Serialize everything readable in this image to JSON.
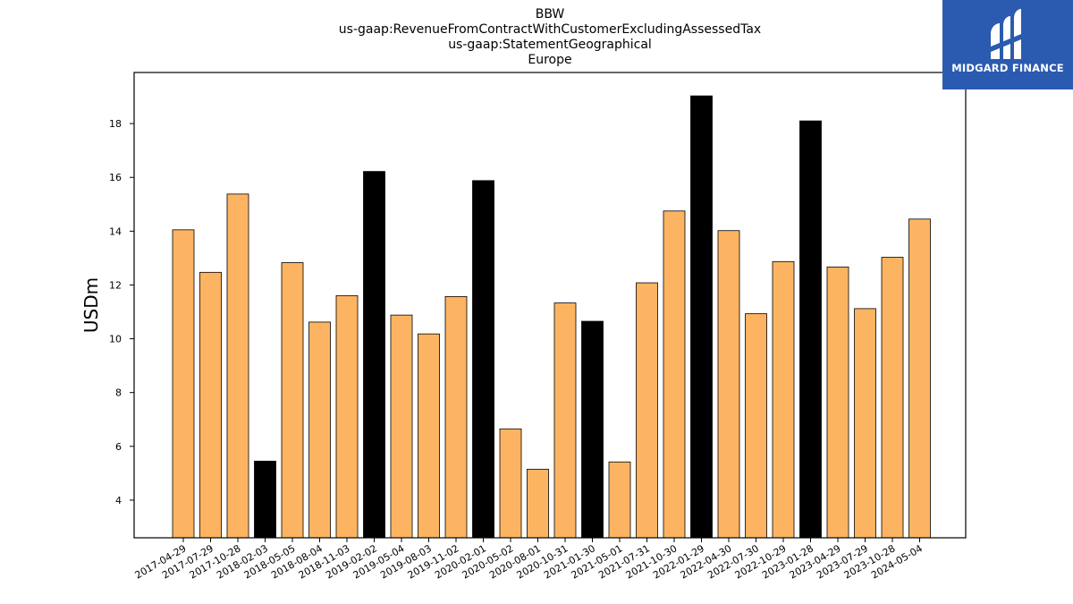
{
  "chart_data": {
    "type": "bar",
    "title_lines": [
      "BBW",
      "us-gaap:RevenueFromContractWithCustomerExcludingAssessedTax",
      "us-gaap:StatementGeographical",
      "Europe"
    ],
    "ylabel": "USDm",
    "ylim": [
      2.6,
      19.9
    ],
    "yticks": [
      4,
      6,
      8,
      10,
      12,
      14,
      16,
      18
    ],
    "categories": [
      "2017-04-29",
      "2017-07-29",
      "2017-10-28",
      "2018-02-03",
      "2018-05-05",
      "2018-08-04",
      "2018-11-03",
      "2019-02-02",
      "2019-05-04",
      "2019-08-03",
      "2019-11-02",
      "2020-02-01",
      "2020-05-02",
      "2020-08-01",
      "2020-10-31",
      "2021-01-30",
      "2021-05-01",
      "2021-07-31",
      "2021-10-30",
      "2022-01-29",
      "2022-04-30",
      "2022-07-30",
      "2022-10-29",
      "2023-01-28",
      "2023-04-29",
      "2023-07-29",
      "2023-10-28",
      "2024-05-04"
    ],
    "values": [
      14.05,
      12.47,
      15.38,
      5.45,
      12.83,
      10.62,
      11.6,
      16.22,
      10.88,
      10.18,
      11.57,
      15.88,
      6.65,
      5.15,
      11.33,
      10.65,
      5.42,
      12.08,
      14.75,
      19.03,
      14.02,
      10.93,
      12.87,
      18.1,
      12.67,
      11.12,
      13.03,
      14.45
    ],
    "highlight": [
      false,
      false,
      false,
      true,
      false,
      false,
      false,
      true,
      false,
      false,
      false,
      true,
      false,
      false,
      false,
      true,
      false,
      false,
      false,
      true,
      false,
      false,
      false,
      true,
      false,
      false,
      false,
      false
    ],
    "colors": {
      "normal": "#fdb462",
      "highlight": "#000000",
      "edge": "#000000"
    },
    "grid": false,
    "legend": "none"
  },
  "logo": {
    "text": "MIDGARD FINANCE",
    "color": "#2b5bb0"
  }
}
